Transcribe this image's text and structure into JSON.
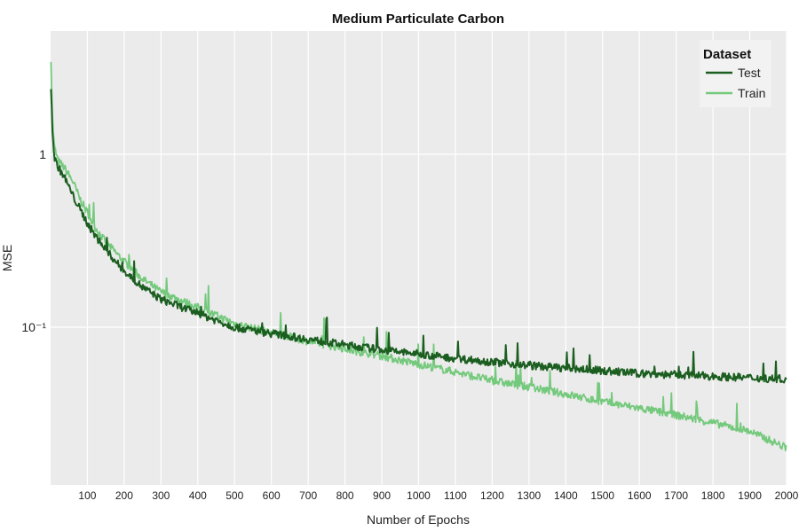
{
  "chart_data": {
    "type": "line",
    "title": "Medium Particulate Carbon",
    "xlabel": "Number of Epochs",
    "ylabel": "MSE",
    "yscale": "log",
    "xlim": [
      0,
      2000
    ],
    "ylim": [
      0.01,
      5
    ],
    "grid": true,
    "legend_placement": "top-right",
    "legend_title": "Dataset",
    "x_ticks": [
      100,
      200,
      300,
      400,
      500,
      600,
      700,
      800,
      900,
      1000,
      1100,
      1200,
      1300,
      1400,
      1500,
      1600,
      1700,
      1800,
      1900,
      2000
    ],
    "x_tick_labels": [
      "100",
      "200",
      "300",
      "400",
      "500",
      "600",
      "700",
      "800",
      "900",
      "1000",
      "1100",
      "1200",
      "1300",
      "1400",
      "1500",
      "1600",
      "1700",
      "1800",
      "1900",
      "2000"
    ],
    "y_ticks": [
      1,
      0.1
    ],
    "y_tick_labels": [
      "1",
      "10⁻¹"
    ],
    "series": [
      {
        "name": "Test",
        "color": "#1b5e20",
        "x": [
          1,
          5,
          10,
          20,
          40,
          60,
          80,
          100,
          120,
          150,
          200,
          250,
          300,
          400,
          500,
          600,
          700,
          800,
          900,
          1000,
          1100,
          1200,
          1300,
          1400,
          1500,
          1600,
          1700,
          1800,
          1900,
          2000
        ],
        "y": [
          2.5,
          1.4,
          0.95,
          0.85,
          0.72,
          0.58,
          0.48,
          0.4,
          0.34,
          0.28,
          0.21,
          0.17,
          0.145,
          0.12,
          0.1,
          0.092,
          0.085,
          0.079,
          0.074,
          0.07,
          0.066,
          0.063,
          0.06,
          0.058,
          0.056,
          0.054,
          0.053,
          0.052,
          0.051,
          0.05
        ]
      },
      {
        "name": "Train",
        "color": "#74c97c",
        "x": [
          1,
          5,
          10,
          20,
          40,
          60,
          80,
          100,
          120,
          150,
          200,
          250,
          300,
          400,
          500,
          600,
          700,
          800,
          900,
          1000,
          1100,
          1200,
          1300,
          1400,
          1500,
          1600,
          1700,
          1800,
          1900,
          2000
        ],
        "y": [
          3.6,
          1.6,
          1.1,
          0.92,
          0.82,
          0.7,
          0.55,
          0.46,
          0.38,
          0.31,
          0.24,
          0.19,
          0.16,
          0.13,
          0.105,
          0.093,
          0.083,
          0.075,
          0.068,
          0.061,
          0.055,
          0.049,
          0.045,
          0.041,
          0.037,
          0.034,
          0.031,
          0.028,
          0.025,
          0.02
        ]
      }
    ]
  }
}
